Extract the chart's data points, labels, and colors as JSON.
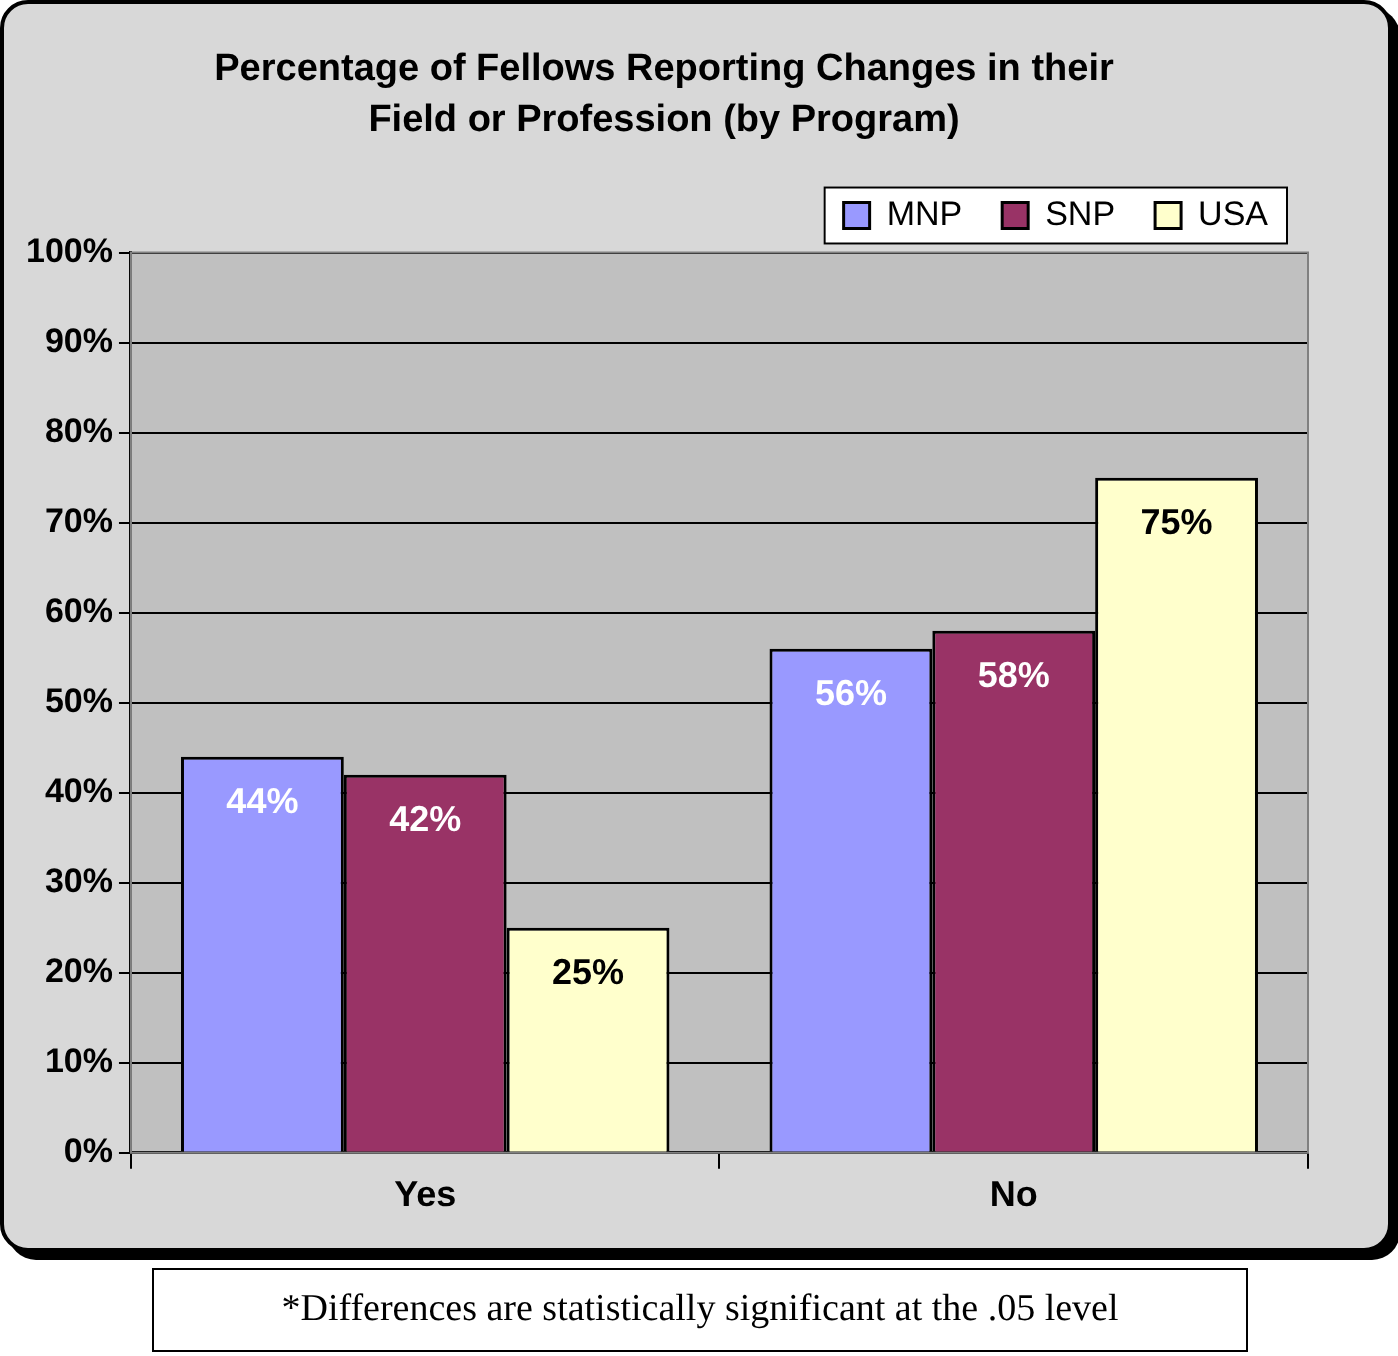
{
  "chart_data": {
    "type": "bar",
    "title": "Percentage of Fellows Reporting Changes in their Field or Profession (by Program)",
    "categories": [
      "Yes",
      "No"
    ],
    "series": [
      {
        "name": "MNP",
        "color": "#9999ff",
        "values": [
          44,
          56
        ],
        "value_labels": [
          "44%",
          "56%"
        ]
      },
      {
        "name": "SNP",
        "color": "#993366",
        "values": [
          42,
          58
        ],
        "value_labels": [
          "42%",
          "58%"
        ]
      },
      {
        "name": "USA",
        "color": "#ffffcc",
        "values": [
          25,
          75
        ],
        "value_labels": [
          "25%",
          "75%"
        ]
      }
    ],
    "ylim": [
      0,
      100
    ],
    "yticks": [
      {
        "value": 0,
        "label": "0%"
      },
      {
        "value": 10,
        "label": "10%"
      },
      {
        "value": 20,
        "label": "20%"
      },
      {
        "value": 30,
        "label": "30%"
      },
      {
        "value": 40,
        "label": "40%"
      },
      {
        "value": 50,
        "label": "50%"
      },
      {
        "value": 60,
        "label": "60%"
      },
      {
        "value": 70,
        "label": "70%"
      },
      {
        "value": 80,
        "label": "80%"
      },
      {
        "value": 90,
        "label": "90%"
      },
      {
        "value": 100,
        "label": "100%"
      }
    ],
    "grid": "y",
    "legend": "top right",
    "annotations": [
      "*Differences are statistically significant at the .05 level"
    ]
  }
}
